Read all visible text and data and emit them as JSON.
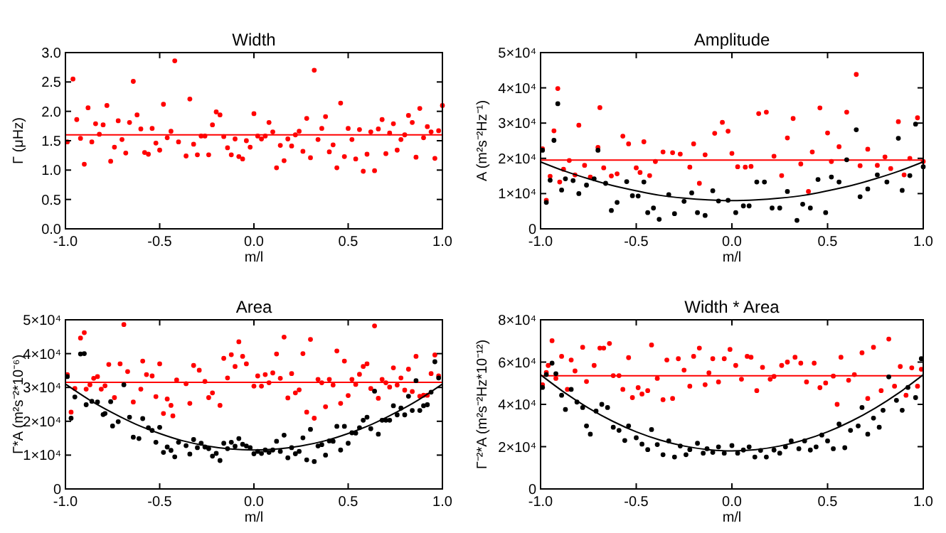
{
  "chart_data": [
    {
      "type": "scatter",
      "title": "Width",
      "xlabel": "m/l",
      "ylabel": "Γ (μHz)",
      "xlim": [
        -1,
        1
      ],
      "xticks": [
        {
          "value": -1,
          "label": "-1.0"
        },
        {
          "value": -0.5,
          "label": "-0.5"
        },
        {
          "value": 0,
          "label": "0.0"
        },
        {
          "value": 0.5,
          "label": "0.5"
        },
        {
          "value": 1,
          "label": "1.0"
        }
      ],
      "ylim": [
        0,
        3
      ],
      "yticks": [
        {
          "value": 0,
          "label": "0.0"
        },
        {
          "value": 0.5,
          "label": "0.5"
        },
        {
          "value": 1,
          "label": "1.0"
        },
        {
          "value": 1.5,
          "label": "1.5"
        },
        {
          "value": 2,
          "label": "2.0"
        },
        {
          "value": 2.5,
          "label": "2.5"
        },
        {
          "value": 3,
          "label": "3.0"
        }
      ],
      "marker": "circle",
      "ref_lines": [
        {
          "axis": "y",
          "value": 1.6,
          "color": "#ff0000"
        }
      ],
      "series": [
        {
          "color": "#ff0000",
          "x": [
            -0.99,
            -0.96,
            -0.94,
            -0.92,
            -0.9,
            -0.88,
            -0.86,
            -0.84,
            -0.82,
            -0.8,
            -0.78,
            -0.76,
            -0.74,
            -0.72,
            -0.7,
            -0.68,
            -0.66,
            -0.64,
            -0.62,
            -0.6,
            -0.58,
            -0.56,
            -0.54,
            -0.52,
            -0.5,
            -0.48,
            -0.46,
            -0.44,
            -0.42,
            -0.4,
            -0.36,
            -0.34,
            -0.32,
            -0.3,
            -0.28,
            -0.26,
            -0.24,
            -0.22,
            -0.2,
            -0.18,
            -0.16,
            -0.14,
            -0.12,
            -0.1,
            -0.08,
            -0.06,
            -0.04,
            -0.02,
            0.0,
            0.02,
            0.04,
            0.06,
            0.08,
            0.1,
            0.12,
            0.14,
            0.16,
            0.18,
            0.2,
            0.22,
            0.24,
            0.26,
            0.28,
            0.3,
            0.32,
            0.34,
            0.36,
            0.38,
            0.4,
            0.42,
            0.44,
            0.46,
            0.48,
            0.5,
            0.52,
            0.54,
            0.56,
            0.58,
            0.6,
            0.62,
            0.64,
            0.66,
            0.68,
            0.7,
            0.72,
            0.74,
            0.76,
            0.78,
            0.8,
            0.82,
            0.84,
            0.86,
            0.88,
            0.9,
            0.92,
            0.94,
            0.96,
            0.98,
            1.0
          ],
          "values": [
            1.48,
            2.55,
            1.86,
            1.54,
            1.1,
            2.06,
            1.48,
            1.79,
            1.61,
            1.77,
            2.1,
            1.15,
            1.39,
            1.84,
            1.52,
            1.29,
            1.81,
            2.51,
            1.94,
            1.7,
            1.3,
            1.27,
            1.71,
            1.46,
            1.34,
            2.12,
            1.55,
            1.66,
            2.86,
            1.48,
            1.24,
            2.21,
            1.44,
            1.26,
            1.58,
            1.58,
            1.26,
            1.77,
            1.99,
            1.94,
            1.57,
            1.38,
            1.26,
            1.53,
            1.23,
            1.19,
            1.5,
            1.39,
            1.96,
            1.58,
            1.53,
            1.58,
            1.81,
            1.65,
            1.04,
            1.42,
            1.16,
            1.53,
            1.41,
            1.6,
            1.66,
            1.32,
            1.88,
            1.21,
            2.7,
            1.52,
            1.71,
            1.91,
            1.31,
            1.43,
            1.04,
            2.14,
            1.23,
            1.71,
            1.52,
            1.19,
            1.69,
            0.98,
            1.27,
            1.65,
            0.99,
            1.7,
            1.86,
            1.28,
            1.63,
            1.79,
            1.34,
            1.52,
            1.6,
            1.93,
            1.81,
            1.22,
            2.05,
            1.55,
            1.74,
            1.65,
            1.2,
            1.67,
            2.1
          ]
        }
      ]
    },
    {
      "type": "scatter",
      "title": "Amplitude",
      "xlabel": "m/l",
      "ylabel": "A (m²s⁻²Hz⁻¹)",
      "xlim": [
        -1,
        1
      ],
      "xticks": [
        {
          "value": -1,
          "label": "-1.0"
        },
        {
          "value": -0.5,
          "label": "-0.5"
        },
        {
          "value": 0,
          "label": "0.0"
        },
        {
          "value": 0.5,
          "label": "0.5"
        },
        {
          "value": 1,
          "label": "1.0"
        }
      ],
      "ylim": [
        0,
        50000
      ],
      "yticks": [
        {
          "value": 0,
          "label": "0"
        },
        {
          "value": 10000,
          "label": "1×10⁴"
        },
        {
          "value": 20000,
          "label": "2×10⁴"
        },
        {
          "value": 30000,
          "label": "3×10⁴"
        },
        {
          "value": 40000,
          "label": "4×10⁴"
        },
        {
          "value": 50000,
          "label": "5×10⁴"
        }
      ],
      "marker": "circle",
      "ref_lines": [
        {
          "axis": "y",
          "value": 19500,
          "color": "#ff0000"
        }
      ],
      "series": [
        {
          "color": "#ff0000",
          "x": [
            -0.99,
            -0.97,
            -0.95,
            -0.93,
            -0.91,
            -0.9,
            -0.88,
            -0.85,
            -0.82,
            -0.8,
            -0.77,
            -0.74,
            -0.7,
            -0.69,
            -0.67,
            -0.63,
            -0.6,
            -0.57,
            -0.54,
            -0.5,
            -0.48,
            -0.46,
            -0.43,
            -0.4,
            -0.36,
            -0.31,
            -0.27,
            -0.22,
            -0.2,
            -0.17,
            -0.14,
            -0.09,
            -0.05,
            -0.02,
            0.0,
            0.03,
            0.07,
            0.1,
            0.14,
            0.18,
            0.22,
            0.26,
            0.29,
            0.32,
            0.36,
            0.4,
            0.42,
            0.46,
            0.5,
            0.52,
            0.56,
            0.6,
            0.65,
            0.67,
            0.71,
            0.76,
            0.8,
            0.83,
            0.87,
            0.9,
            0.93,
            0.97,
            1.0
          ],
          "values": [
            22700,
            8100,
            14900,
            27800,
            39800,
            13300,
            16900,
            19400,
            15300,
            29400,
            18000,
            14700,
            23100,
            34400,
            17300,
            15000,
            15600,
            26300,
            24100,
            17300,
            16000,
            24700,
            15100,
            19100,
            21800,
            21600,
            21200,
            17500,
            24100,
            12900,
            21000,
            27100,
            30200,
            27700,
            21400,
            17600,
            17500,
            17700,
            32700,
            33100,
            20600,
            15100,
            25800,
            31300,
            18400,
            10600,
            21800,
            34300,
            27200,
            19100,
            23300,
            33100,
            43800,
            17900,
            22600,
            18000,
            20400,
            17100,
            30400,
            15300,
            20000,
            31500,
            19100
          ]
        },
        {
          "color": "#000000",
          "x": [
            -0.99,
            -0.97,
            -0.95,
            -0.93,
            -0.91,
            -0.89,
            -0.87,
            -0.83,
            -0.8,
            -0.76,
            -0.72,
            -0.7,
            -0.66,
            -0.63,
            -0.6,
            -0.55,
            -0.52,
            -0.49,
            -0.46,
            -0.44,
            -0.41,
            -0.38,
            -0.33,
            -0.3,
            -0.25,
            -0.21,
            -0.18,
            -0.14,
            -0.1,
            -0.07,
            -0.02,
            0.02,
            0.06,
            0.09,
            0.13,
            0.17,
            0.21,
            0.25,
            0.29,
            0.34,
            0.37,
            0.41,
            0.45,
            0.49,
            0.52,
            0.56,
            0.6,
            0.65,
            0.67,
            0.71,
            0.76,
            0.81,
            0.87,
            0.89,
            0.93,
            0.96,
            1.0
          ],
          "values": [
            22300,
            7500,
            13800,
            25100,
            35500,
            11000,
            14200,
            13700,
            10000,
            12400,
            14200,
            22300,
            12900,
            5200,
            7500,
            13400,
            9400,
            9300,
            13300,
            4600,
            5900,
            2700,
            9700,
            4300,
            7800,
            10200,
            4600,
            3800,
            10800,
            7900,
            8100,
            4600,
            6500,
            6500,
            13300,
            13300,
            5900,
            5900,
            10600,
            2400,
            7000,
            5900,
            14000,
            4600,
            14700,
            13300,
            19600,
            28100,
            9100,
            11300,
            15300,
            13300,
            25700,
            10900,
            15100,
            29700,
            17600
          ]
        },
        {
          "type": "line",
          "marker": "none",
          "color": "#000000",
          "x": [
            -1,
            -0.875,
            -0.75,
            -0.625,
            -0.5,
            -0.375,
            -0.25,
            -0.125,
            0,
            0.125,
            0.25,
            0.375,
            0.5,
            0.625,
            0.75,
            0.875,
            1
          ],
          "values": [
            19000,
            16400,
            14200,
            12300,
            10800,
            9500,
            8700,
            8200,
            8000,
            8200,
            8700,
            9500,
            10800,
            12300,
            14200,
            16400,
            19000
          ]
        }
      ]
    },
    {
      "type": "scatter",
      "title": "Area",
      "xlabel": "m/l",
      "ylabel": "Γ*A (m²s⁻²*10⁻⁶)",
      "xlim": [
        -1,
        1
      ],
      "xticks": [
        {
          "value": -1,
          "label": "-1.0"
        },
        {
          "value": -0.5,
          "label": "-0.5"
        },
        {
          "value": 0,
          "label": "0.0"
        },
        {
          "value": 0.5,
          "label": "0.5"
        },
        {
          "value": 1,
          "label": "1.0"
        }
      ],
      "ylim": [
        0,
        50000
      ],
      "yticks": [
        {
          "value": 0,
          "label": "0"
        },
        {
          "value": 10000,
          "label": "1×10⁴"
        },
        {
          "value": 20000,
          "label": "2×10⁴"
        },
        {
          "value": 30000,
          "label": "3×10⁴"
        },
        {
          "value": 40000,
          "label": "4×10⁴"
        },
        {
          "value": 50000,
          "label": "5×10⁴"
        }
      ],
      "marker": "circle",
      "ref_lines": [
        {
          "axis": "y",
          "value": 31500,
          "color": "#ff0000"
        }
      ],
      "series": [
        {
          "color": "#ff0000",
          "x": [
            -0.99,
            -0.97,
            -0.95,
            -0.92,
            -0.9,
            -0.89,
            -0.87,
            -0.85,
            -0.83,
            -0.81,
            -0.79,
            -0.77,
            -0.74,
            -0.71,
            -0.69,
            -0.67,
            -0.64,
            -0.6,
            -0.59,
            -0.57,
            -0.54,
            -0.52,
            -0.5,
            -0.48,
            -0.46,
            -0.44,
            -0.43,
            -0.41,
            -0.36,
            -0.34,
            -0.32,
            -0.29,
            -0.26,
            -0.24,
            -0.22,
            -0.18,
            -0.16,
            -0.14,
            -0.12,
            -0.1,
            -0.08,
            -0.06,
            -0.04,
            0.0,
            0.02,
            0.04,
            0.06,
            0.08,
            0.1,
            0.12,
            0.14,
            0.16,
            0.18,
            0.2,
            0.22,
            0.24,
            0.26,
            0.28,
            0.3,
            0.32,
            0.34,
            0.36,
            0.38,
            0.4,
            0.42,
            0.44,
            0.46,
            0.48,
            0.5,
            0.52,
            0.54,
            0.56,
            0.58,
            0.6,
            0.62,
            0.64,
            0.66,
            0.68,
            0.7,
            0.72,
            0.74,
            0.76,
            0.78,
            0.8,
            0.82,
            0.84,
            0.86,
            0.88,
            0.9,
            0.92,
            0.94,
            0.96,
            0.98
          ],
          "values": [
            33800,
            22700,
            29700,
            44600,
            46200,
            29500,
            30800,
            32700,
            33200,
            29500,
            30500,
            36800,
            27000,
            37000,
            48600,
            34700,
            25700,
            29500,
            37800,
            33800,
            33400,
            27300,
            37000,
            22300,
            26600,
            24700,
            21600,
            32200,
            31100,
            25300,
            36500,
            35100,
            31800,
            27000,
            28400,
            24700,
            38600,
            32800,
            39700,
            36200,
            43500,
            39200,
            37000,
            30400,
            33400,
            30400,
            33800,
            31400,
            34300,
            39900,
            32700,
            44900,
            26900,
            34100,
            28400,
            29300,
            40000,
            22700,
            44200,
            20900,
            32400,
            31400,
            24300,
            32400,
            30700,
            40800,
            25300,
            37800,
            27600,
            32400,
            30900,
            33900,
            36200,
            37000,
            29700,
            48200,
            26800,
            32400,
            31400,
            30100,
            35800,
            30700,
            32800,
            29200,
            35400,
            28800,
            39200,
            27400,
            27700,
            27700,
            34100,
            39600,
            33400
          ]
        },
        {
          "color": "#000000",
          "x": [
            -0.99,
            -0.97,
            -0.95,
            -0.92,
            -0.9,
            -0.89,
            -0.86,
            -0.83,
            -0.8,
            -0.79,
            -0.76,
            -0.75,
            -0.72,
            -0.69,
            -0.66,
            -0.64,
            -0.61,
            -0.59,
            -0.56,
            -0.54,
            -0.52,
            -0.5,
            -0.48,
            -0.46,
            -0.44,
            -0.42,
            -0.4,
            -0.36,
            -0.34,
            -0.32,
            -0.3,
            -0.28,
            -0.26,
            -0.24,
            -0.22,
            -0.2,
            -0.18,
            -0.16,
            -0.14,
            -0.12,
            -0.1,
            -0.08,
            -0.06,
            -0.04,
            -0.02,
            0.0,
            0.02,
            0.04,
            0.06,
            0.08,
            0.1,
            0.12,
            0.14,
            0.16,
            0.18,
            0.2,
            0.22,
            0.24,
            0.26,
            0.28,
            0.3,
            0.32,
            0.34,
            0.36,
            0.38,
            0.4,
            0.42,
            0.44,
            0.46,
            0.48,
            0.5,
            0.52,
            0.54,
            0.56,
            0.58,
            0.6,
            0.62,
            0.64,
            0.66,
            0.68,
            0.7,
            0.72,
            0.74,
            0.76,
            0.78,
            0.8,
            0.82,
            0.84,
            0.86,
            0.88,
            0.9,
            0.92,
            0.94,
            0.96,
            0.98
          ],
          "values": [
            33200,
            20900,
            27200,
            39900,
            40000,
            24900,
            25900,
            25700,
            22000,
            22300,
            25800,
            18600,
            19900,
            30800,
            21200,
            15300,
            14900,
            20800,
            18100,
            17300,
            13800,
            18200,
            10800,
            12400,
            11400,
            9500,
            13800,
            12800,
            10300,
            14600,
            12200,
            13500,
            12400,
            11900,
            9700,
            10500,
            8400,
            13500,
            11900,
            13800,
            12600,
            14900,
            13200,
            12700,
            12200,
            10400,
            11100,
            10500,
            11500,
            10800,
            11500,
            14100,
            11100,
            15900,
            9200,
            12200,
            10400,
            11100,
            15100,
            8600,
            17600,
            8100,
            12700,
            13100,
            10000,
            14200,
            14100,
            18500,
            11500,
            18500,
            13500,
            16600,
            16500,
            18100,
            20300,
            21200,
            17800,
            28900,
            16200,
            20300,
            20300,
            20300,
            24600,
            21900,
            23900,
            21900,
            27400,
            23200,
            32000,
            23200,
            24600,
            24900,
            28600,
            37600,
            32800
          ]
        },
        {
          "type": "line",
          "marker": "none",
          "color": "#000000",
          "x": [
            -1,
            -0.875,
            -0.75,
            -0.625,
            -0.5,
            -0.375,
            -0.25,
            -0.125,
            0,
            0.125,
            0.25,
            0.375,
            0.5,
            0.625,
            0.75,
            0.875,
            1
          ],
          "values": [
            31000,
            26400,
            22500,
            19100,
            16400,
            14200,
            12700,
            11800,
            11500,
            11800,
            12700,
            14200,
            16400,
            19100,
            22500,
            26400,
            31000
          ]
        }
      ]
    },
    {
      "type": "scatter",
      "title": "Width * Area",
      "xlabel": "m/l",
      "ylabel": "Γ⁻²*A (m²s⁻²Hz*10⁻¹²)",
      "xlim": [
        -1,
        1
      ],
      "xticks": [
        {
          "value": -1,
          "label": "-1.0"
        },
        {
          "value": -0.5,
          "label": "-0.5"
        },
        {
          "value": 0,
          "label": "0.0"
        },
        {
          "value": 0.5,
          "label": "0.5"
        },
        {
          "value": 1,
          "label": "1.0"
        }
      ],
      "ylim": [
        0,
        80000
      ],
      "yticks": [
        {
          "value": 0,
          "label": "0"
        },
        {
          "value": 20000,
          "label": "2×10⁴"
        },
        {
          "value": 40000,
          "label": "4×10⁴"
        },
        {
          "value": 60000,
          "label": "6×10⁴"
        },
        {
          "value": 80000,
          "label": "8×10⁴"
        }
      ],
      "marker": "circle",
      "ref_lines": [
        {
          "axis": "y",
          "value": 53500,
          "color": "#ff0000"
        }
      ],
      "series": [
        {
          "color": "#ff0000",
          "x": [
            -0.99,
            -0.97,
            -0.96,
            -0.94,
            -0.92,
            -0.89,
            -0.86,
            -0.84,
            -0.82,
            -0.78,
            -0.76,
            -0.72,
            -0.69,
            -0.67,
            -0.64,
            -0.62,
            -0.59,
            -0.57,
            -0.54,
            -0.52,
            -0.49,
            -0.47,
            -0.44,
            -0.42,
            -0.39,
            -0.36,
            -0.34,
            -0.31,
            -0.28,
            -0.25,
            -0.22,
            -0.2,
            -0.17,
            -0.14,
            -0.12,
            -0.1,
            -0.07,
            -0.04,
            -0.01,
            0.02,
            0.05,
            0.08,
            0.1,
            0.13,
            0.16,
            0.2,
            0.22,
            0.26,
            0.29,
            0.33,
            0.36,
            0.39,
            0.43,
            0.46,
            0.49,
            0.53,
            0.55,
            0.57,
            0.61,
            0.64,
            0.68,
            0.71,
            0.74,
            0.78,
            0.82,
            0.85,
            0.88,
            0.91,
            0.94,
            0.97,
            0.99
          ],
          "values": [
            49300,
            55100,
            58400,
            70100,
            52300,
            62700,
            47100,
            61000,
            55800,
            67000,
            50800,
            58400,
            66600,
            66600,
            68800,
            53600,
            53600,
            47100,
            62100,
            43200,
            47900,
            44900,
            46500,
            68100,
            52300,
            42200,
            61000,
            42800,
            61600,
            56200,
            48600,
            62700,
            66600,
            49300,
            54900,
            61600,
            50600,
            61600,
            66000,
            58400,
            51900,
            62700,
            62300,
            46500,
            57500,
            51900,
            53200,
            58400,
            60000,
            62300,
            59500,
            50600,
            59500,
            47900,
            50100,
            53400,
            40000,
            62300,
            51400,
            54100,
            64400,
            42800,
            67000,
            46500,
            70900,
            48600,
            57900,
            44300,
            57300,
            48600,
            56600
          ]
        },
        {
          "color": "#000000",
          "x": [
            -0.99,
            -0.97,
            -0.94,
            -0.92,
            -0.89,
            -0.87,
            -0.84,
            -0.81,
            -0.78,
            -0.76,
            -0.74,
            -0.71,
            -0.68,
            -0.65,
            -0.62,
            -0.59,
            -0.56,
            -0.54,
            -0.5,
            -0.47,
            -0.44,
            -0.42,
            -0.39,
            -0.36,
            -0.33,
            -0.3,
            -0.27,
            -0.24,
            -0.22,
            -0.18,
            -0.15,
            -0.13,
            -0.1,
            -0.07,
            -0.04,
            0.0,
            0.03,
            0.06,
            0.09,
            0.12,
            0.15,
            0.18,
            0.22,
            0.25,
            0.28,
            0.31,
            0.35,
            0.38,
            0.41,
            0.44,
            0.47,
            0.5,
            0.53,
            0.56,
            0.59,
            0.62,
            0.66,
            0.68,
            0.71,
            0.74,
            0.77,
            0.79,
            0.82,
            0.86,
            0.89,
            0.92,
            0.96,
            0.99
          ],
          "values": [
            48000,
            54100,
            59500,
            54500,
            44300,
            37600,
            47100,
            41100,
            38500,
            29800,
            25900,
            36800,
            40000,
            38500,
            29200,
            27700,
            22900,
            29800,
            24200,
            21200,
            18600,
            28100,
            21000,
            16200,
            22700,
            15100,
            20300,
            16200,
            18600,
            21600,
            16900,
            19000,
            17300,
            19900,
            16900,
            20500,
            16900,
            18400,
            19900,
            15100,
            18200,
            15100,
            18400,
            16900,
            19900,
            22700,
            19000,
            22700,
            18400,
            19900,
            25500,
            22700,
            19000,
            30700,
            19500,
            27700,
            29800,
            38500,
            25900,
            33500,
            29200,
            37200,
            53000,
            41900,
            37200,
            48000,
            43200,
            61600
          ]
        },
        {
          "type": "line",
          "marker": "none",
          "color": "#000000",
          "x": [
            -1,
            -0.875,
            -0.75,
            -0.625,
            -0.5,
            -0.375,
            -0.25,
            -0.125,
            0,
            0.125,
            0.25,
            0.375,
            0.5,
            0.625,
            0.75,
            0.875,
            1
          ],
          "values": [
            54000,
            45600,
            38300,
            32100,
            27000,
            23100,
            20300,
            18600,
            18000,
            18600,
            20300,
            23100,
            27000,
            32100,
            38300,
            45600,
            54000
          ]
        }
      ]
    }
  ]
}
